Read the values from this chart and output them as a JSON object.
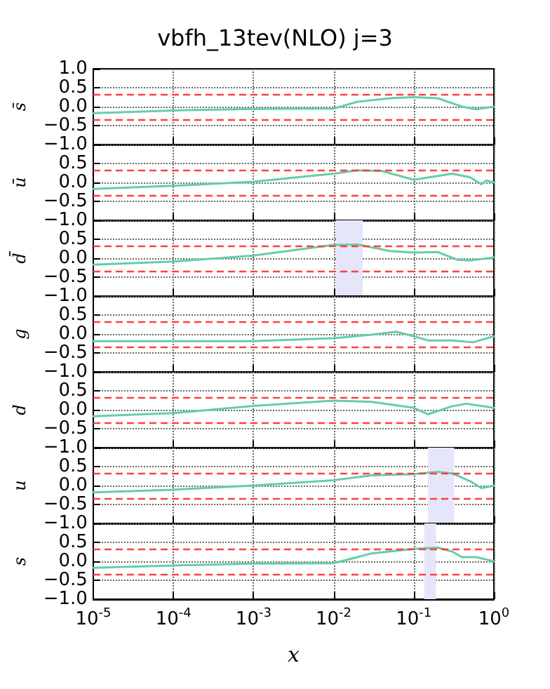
{
  "chart_data": [
    {
      "type": "line",
      "title": "vbfh_13tev(NLO) j=3",
      "ylabel": "s̄",
      "log": "x",
      "grid": true,
      "tick_labels": "y",
      "xlim": [
        1e-05,
        1
      ],
      "xticks": [
        {
          "value": 1e-05,
          "label": null
        },
        {
          "value": 0.0001,
          "label": null
        },
        {
          "value": 0.001,
          "label": null
        },
        {
          "value": 0.01,
          "label": null
        },
        {
          "value": 0.1,
          "label": null
        },
        {
          "value": 1,
          "label": null
        }
      ],
      "ylim": [
        -1,
        1
      ],
      "yticks": [
        {
          "value": -1,
          "label": "−1.0"
        },
        {
          "value": -0.5,
          "label": "−0.5"
        },
        {
          "value": 0,
          "label": "0.0"
        },
        {
          "value": 0.5,
          "label": "0.5"
        },
        {
          "value": 1,
          "label": "1.0"
        }
      ],
      "ref_lines": [
        {
          "axis": "y",
          "value": 0.33,
          "color": "#ff4040",
          "line_style": "dashed"
        },
        {
          "axis": "y",
          "value": -0.33,
          "color": "#ff4040",
          "line_style": "dashed"
        }
      ],
      "series": [
        {
          "color": "#66cdaa",
          "x": [
            1e-05,
            0.0001,
            0.001,
            0.01,
            0.02,
            0.05,
            0.1,
            0.2,
            0.4,
            0.6,
            1
          ],
          "values": [
            -0.17,
            -0.1,
            -0.06,
            -0.05,
            0.13,
            0.22,
            0.25,
            0.22,
            0,
            -0.07,
            0
          ]
        }
      ]
    },
    {
      "type": "line",
      "ylabel": "ū",
      "log": "x",
      "grid": true,
      "tick_labels": "y",
      "xlim": [
        1e-05,
        1
      ],
      "xticks": [
        {
          "value": 1e-05,
          "label": null
        },
        {
          "value": 0.0001,
          "label": null
        },
        {
          "value": 0.001,
          "label": null
        },
        {
          "value": 0.01,
          "label": null
        },
        {
          "value": 0.1,
          "label": null
        },
        {
          "value": 1,
          "label": null
        }
      ],
      "ylim": [
        -1,
        1
      ],
      "yticks": [
        {
          "value": -1,
          "label": "−1.0"
        },
        {
          "value": -0.5,
          "label": "−0.5"
        },
        {
          "value": 0,
          "label": "0.0"
        },
        {
          "value": 0.5,
          "label": "0.5"
        },
        {
          "value": 1,
          "label": null
        }
      ],
      "ref_lines": [
        {
          "axis": "y",
          "value": 0.33,
          "color": "#ff4040",
          "line_style": "dashed"
        },
        {
          "axis": "y",
          "value": -0.33,
          "color": "#ff4040",
          "line_style": "dashed"
        }
      ],
      "series": [
        {
          "color": "#66cdaa",
          "x": [
            1e-05,
            0.0001,
            0.001,
            0.01,
            0.02,
            0.04,
            0.1,
            0.2,
            0.3,
            0.5,
            0.7,
            0.8,
            1
          ],
          "values": [
            -0.17,
            -0.09,
            0.02,
            0.23,
            0.32,
            0.3,
            0.07,
            0.17,
            0.23,
            0.14,
            -0.05,
            0.05,
            0
          ]
        }
      ]
    },
    {
      "type": "line",
      "ylabel": "d̄",
      "log": "x",
      "grid": true,
      "tick_labels": "y",
      "xlim": [
        1e-05,
        1
      ],
      "xticks": [
        {
          "value": 1e-05,
          "label": null
        },
        {
          "value": 0.0001,
          "label": null
        },
        {
          "value": 0.001,
          "label": null
        },
        {
          "value": 0.01,
          "label": null
        },
        {
          "value": 0.1,
          "label": null
        },
        {
          "value": 1,
          "label": null
        }
      ],
      "ylim": [
        -1,
        1
      ],
      "yticks": [
        {
          "value": -1,
          "label": "−1.0"
        },
        {
          "value": -0.5,
          "label": "−0.5"
        },
        {
          "value": 0,
          "label": "0.0"
        },
        {
          "value": 0.5,
          "label": "0.5"
        },
        {
          "value": 1,
          "label": null
        }
      ],
      "ref_lines": [
        {
          "axis": "y",
          "value": 0.33,
          "color": "#ff4040",
          "line_style": "dashed"
        },
        {
          "axis": "y",
          "value": -0.33,
          "color": "#ff4040",
          "line_style": "dashed"
        }
      ],
      "bands": [
        {
          "axis": "x",
          "from": 0.0107,
          "to": 0.023,
          "color": "#e6e6fa"
        }
      ],
      "series": [
        {
          "color": "#66cdaa",
          "x": [
            1e-05,
            0.0001,
            0.001,
            0.01,
            0.02,
            0.05,
            0.1,
            0.2,
            0.35,
            0.5,
            1
          ],
          "values": [
            -0.17,
            -0.09,
            0.07,
            0.35,
            0.36,
            0.19,
            0.15,
            0.16,
            -0.04,
            -0.06,
            0.02
          ]
        }
      ]
    },
    {
      "type": "line",
      "ylabel": "g",
      "log": "x",
      "grid": true,
      "tick_labels": "y",
      "xlim": [
        1e-05,
        1
      ],
      "xticks": [
        {
          "value": 1e-05,
          "label": null
        },
        {
          "value": 0.0001,
          "label": null
        },
        {
          "value": 0.001,
          "label": null
        },
        {
          "value": 0.01,
          "label": null
        },
        {
          "value": 0.1,
          "label": null
        },
        {
          "value": 1,
          "label": null
        }
      ],
      "ylim": [
        -1,
        1
      ],
      "yticks": [
        {
          "value": -1,
          "label": "−1.0"
        },
        {
          "value": -0.5,
          "label": "−0.5"
        },
        {
          "value": 0,
          "label": "0.0"
        },
        {
          "value": 0.5,
          "label": "0.5"
        },
        {
          "value": 1,
          "label": null
        }
      ],
      "ref_lines": [
        {
          "axis": "y",
          "value": 0.33,
          "color": "#ff4040",
          "line_style": "dashed"
        },
        {
          "axis": "y",
          "value": -0.33,
          "color": "#ff4040",
          "line_style": "dashed"
        }
      ],
      "series": [
        {
          "color": "#66cdaa",
          "x": [
            1e-05,
            0.001,
            0.01,
            0.03,
            0.06,
            0.1,
            0.15,
            0.3,
            0.55,
            1
          ],
          "values": [
            -0.19,
            -0.19,
            -0.11,
            -0.02,
            0.06,
            -0.06,
            -0.17,
            -0.17,
            -0.22,
            -0.06
          ]
        }
      ]
    },
    {
      "type": "line",
      "ylabel": "d",
      "log": "x",
      "grid": true,
      "tick_labels": "y",
      "xlim": [
        1e-05,
        1
      ],
      "xticks": [
        {
          "value": 1e-05,
          "label": null
        },
        {
          "value": 0.0001,
          "label": null
        },
        {
          "value": 0.001,
          "label": null
        },
        {
          "value": 0.01,
          "label": null
        },
        {
          "value": 0.1,
          "label": null
        },
        {
          "value": 1,
          "label": null
        }
      ],
      "ylim": [
        -1,
        1
      ],
      "yticks": [
        {
          "value": -1,
          "label": "−1.0"
        },
        {
          "value": -0.5,
          "label": "−0.5"
        },
        {
          "value": 0,
          "label": "0.0"
        },
        {
          "value": 0.5,
          "label": "0.5"
        },
        {
          "value": 1,
          "label": null
        }
      ],
      "ref_lines": [
        {
          "axis": "y",
          "value": 0.33,
          "color": "#ff4040",
          "line_style": "dashed"
        },
        {
          "axis": "y",
          "value": -0.33,
          "color": "#ff4040",
          "line_style": "dashed"
        }
      ],
      "series": [
        {
          "color": "#66cdaa",
          "x": [
            1e-05,
            0.0001,
            0.001,
            0.01,
            0.03,
            0.1,
            0.15,
            0.3,
            0.45,
            1
          ],
          "values": [
            -0.17,
            -0.09,
            0.1,
            0.24,
            0.21,
            0.05,
            -0.12,
            0.09,
            0.16,
            0.05
          ]
        }
      ]
    },
    {
      "type": "line",
      "ylabel": "u",
      "log": "x",
      "grid": true,
      "tick_labels": "y",
      "xlim": [
        1e-05,
        1
      ],
      "xticks": [
        {
          "value": 1e-05,
          "label": null
        },
        {
          "value": 0.0001,
          "label": null
        },
        {
          "value": 0.001,
          "label": null
        },
        {
          "value": 0.01,
          "label": null
        },
        {
          "value": 0.1,
          "label": null
        },
        {
          "value": 1,
          "label": null
        }
      ],
      "ylim": [
        -1,
        1
      ],
      "yticks": [
        {
          "value": -1,
          "label": "−1.0"
        },
        {
          "value": -0.5,
          "label": "−0.5"
        },
        {
          "value": 0,
          "label": "0.0"
        },
        {
          "value": 0.5,
          "label": "0.5"
        },
        {
          "value": 1,
          "label": null
        }
      ],
      "ref_lines": [
        {
          "axis": "y",
          "value": 0.33,
          "color": "#ff4040",
          "line_style": "dashed"
        },
        {
          "axis": "y",
          "value": -0.33,
          "color": "#ff4040",
          "line_style": "dashed"
        }
      ],
      "bands": [
        {
          "axis": "x",
          "from": 0.15,
          "to": 0.32,
          "color": "#e6e6fa"
        }
      ],
      "series": [
        {
          "color": "#66cdaa",
          "x": [
            1e-05,
            0.0001,
            0.001,
            0.01,
            0.03,
            0.1,
            0.2,
            0.3,
            0.5,
            0.7,
            1
          ],
          "values": [
            -0.18,
            -0.11,
            0,
            0.14,
            0.27,
            0.3,
            0.36,
            0.32,
            0.12,
            -0.07,
            0
          ]
        }
      ]
    },
    {
      "type": "line",
      "ylabel": "s",
      "xlabel": "x",
      "log": "x",
      "grid": true,
      "xlim": [
        1e-05,
        1
      ],
      "xticks": [
        {
          "value": 1e-05,
          "label": "10$^{-5}$"
        },
        {
          "value": 0.0001,
          "label": "10$^{-4}$"
        },
        {
          "value": 0.001,
          "label": "10$^{-3}$"
        },
        {
          "value": 0.01,
          "label": "10$^{-2}$"
        },
        {
          "value": 0.1,
          "label": "10$^{-1}$"
        },
        {
          "value": 1,
          "label": "10$^{0}$"
        }
      ],
      "ylim": [
        -1,
        1
      ],
      "yticks": [
        {
          "value": -1,
          "label": "−1.0"
        },
        {
          "value": -0.5,
          "label": "−0.5"
        },
        {
          "value": 0,
          "label": "0.0"
        },
        {
          "value": 0.5,
          "label": "0.5"
        },
        {
          "value": 1,
          "label": null
        }
      ],
      "ref_lines": [
        {
          "axis": "y",
          "value": 0.33,
          "color": "#ff4040",
          "line_style": "dashed"
        },
        {
          "axis": "y",
          "value": -0.33,
          "color": "#ff4040",
          "line_style": "dashed"
        }
      ],
      "bands": [
        {
          "axis": "x",
          "from": 0.135,
          "to": 0.19,
          "color": "#e6e6fa"
        }
      ],
      "series": [
        {
          "color": "#66cdaa",
          "x": [
            1e-05,
            0.0001,
            0.001,
            0.01,
            0.03,
            0.1,
            0.2,
            0.3,
            0.4,
            0.6,
            1
          ],
          "values": [
            -0.17,
            -0.11,
            -0.06,
            -0.05,
            0.21,
            0.33,
            0.36,
            0.26,
            0.11,
            0.11,
            0
          ]
        }
      ]
    }
  ]
}
